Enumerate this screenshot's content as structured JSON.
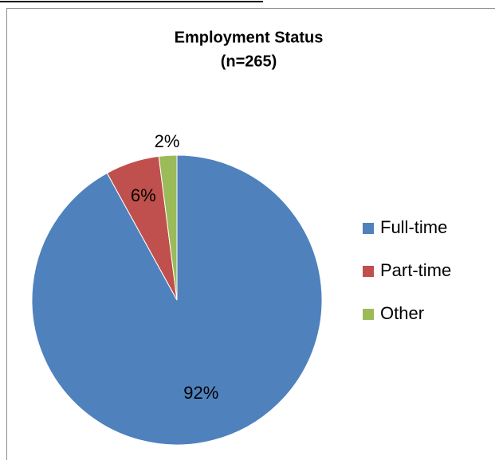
{
  "chart_data": {
    "type": "pie",
    "title": [
      "Employment Status",
      "(n=265)"
    ],
    "categories": [
      "Full-time",
      "Part-time",
      "Other"
    ],
    "values": [
      92,
      6,
      2
    ],
    "value_labels": [
      "92%",
      "6%",
      "2%"
    ],
    "colors": [
      "#4f81bd",
      "#c0504d",
      "#9bbb59"
    ],
    "legend": "right"
  }
}
